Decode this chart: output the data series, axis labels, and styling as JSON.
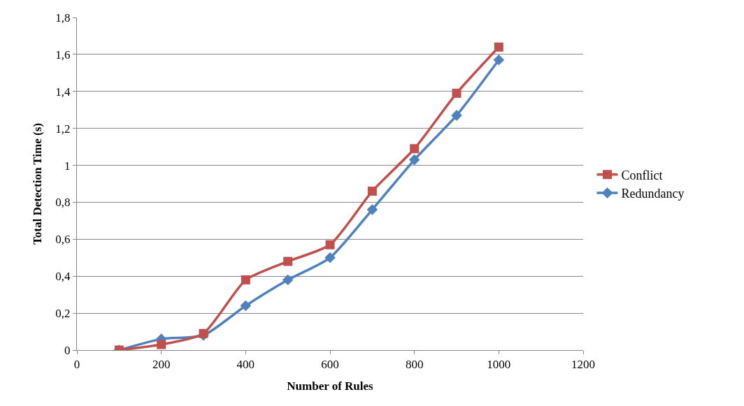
{
  "chart_data": {
    "type": "line",
    "xlabel": "Number of Rules",
    "ylabel": "Total Detection Time (s)",
    "x": [
      100,
      200,
      300,
      400,
      500,
      600,
      700,
      800,
      900,
      1000
    ],
    "series": [
      {
        "name": "Conflict",
        "color": "#c0504d",
        "marker": "square",
        "values": [
          0,
          0.03,
          0.09,
          0.38,
          0.48,
          0.57,
          0.86,
          1.09,
          1.39,
          1.64
        ]
      },
      {
        "name": "Redundancy",
        "color": "#4f81bd",
        "marker": "diamond",
        "values": [
          0,
          0.06,
          0.08,
          0.24,
          0.38,
          0.5,
          0.76,
          1.03,
          1.27,
          1.57
        ]
      }
    ],
    "xlim": [
      0,
      1200
    ],
    "xticks": [
      0,
      200,
      400,
      600,
      800,
      1000,
      1200
    ],
    "ylim": [
      0,
      1.8
    ],
    "yticks": [
      0,
      {
        "value": 0.2,
        "label": "0,2"
      },
      {
        "value": 0.4,
        "label": "0,4"
      },
      {
        "value": 0.6,
        "label": "0,6"
      },
      {
        "value": 0.8,
        "label": "0,8"
      },
      1,
      {
        "value": 1.2,
        "label": "1,2"
      },
      {
        "value": 1.4,
        "label": "1,4"
      },
      {
        "value": 1.6,
        "label": "1,6"
      },
      {
        "value": 1.8,
        "label": "1,8"
      }
    ],
    "grid": "y",
    "legend": "right",
    "line_style": "solid"
  }
}
